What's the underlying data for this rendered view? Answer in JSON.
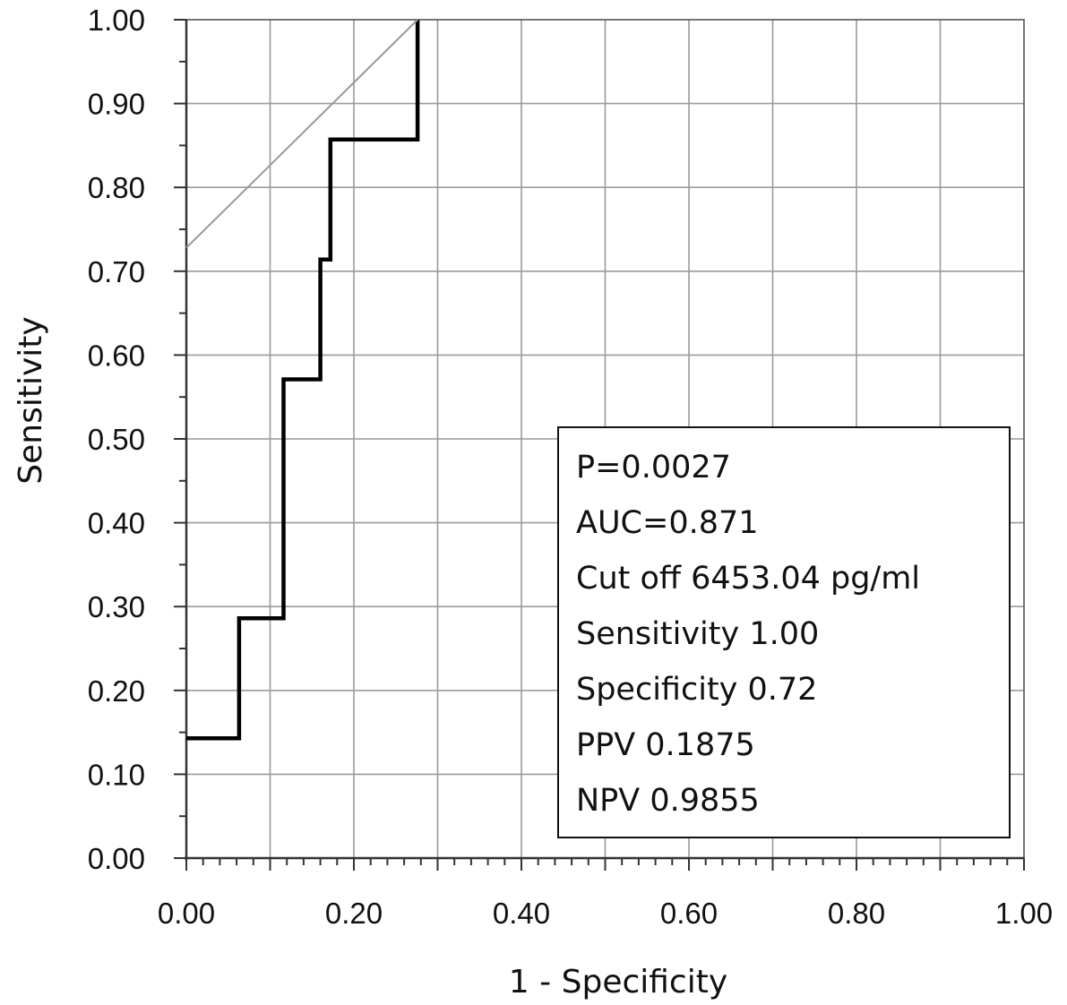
{
  "chart_data": {
    "type": "line",
    "xlabel": "1 - Specificity",
    "ylabel": "Sensitivity",
    "xlim": [
      0,
      1
    ],
    "ylim": [
      0,
      1
    ],
    "grid": true,
    "x_ticks": [
      "0.00",
      "0.20",
      "0.40",
      "0.60",
      "0.80",
      "1.00"
    ],
    "y_ticks": [
      "0.00",
      "0.10",
      "0.20",
      "0.30",
      "0.40",
      "0.50",
      "0.60",
      "0.70",
      "0.80",
      "0.90",
      "1.00"
    ],
    "series": [
      {
        "style": "thick-black-step",
        "color": "#000000",
        "points": [
          [
            0.0,
            0.143
          ],
          [
            0.063,
            0.143
          ],
          [
            0.063,
            0.286
          ],
          [
            0.116,
            0.286
          ],
          [
            0.116,
            0.571
          ],
          [
            0.16,
            0.571
          ],
          [
            0.16,
            0.714
          ],
          [
            0.172,
            0.714
          ],
          [
            0.172,
            0.857
          ],
          [
            0.276,
            0.857
          ],
          [
            0.276,
            1.0
          ]
        ]
      },
      {
        "style": "thin-gray-line",
        "color": "#999999",
        "points": [
          [
            0.0,
            0.728
          ],
          [
            0.276,
            1.0
          ]
        ]
      }
    ],
    "annotation_box": {
      "position": "bottom-right",
      "lines": [
        "P=0.0027",
        "AUC=0.871",
        "Cut off 6453.04 pg/ml",
        "Sensitivity 1.00",
        "Specificity 0.72",
        "PPV 0.1875",
        "NPV 0.9855"
      ]
    }
  }
}
